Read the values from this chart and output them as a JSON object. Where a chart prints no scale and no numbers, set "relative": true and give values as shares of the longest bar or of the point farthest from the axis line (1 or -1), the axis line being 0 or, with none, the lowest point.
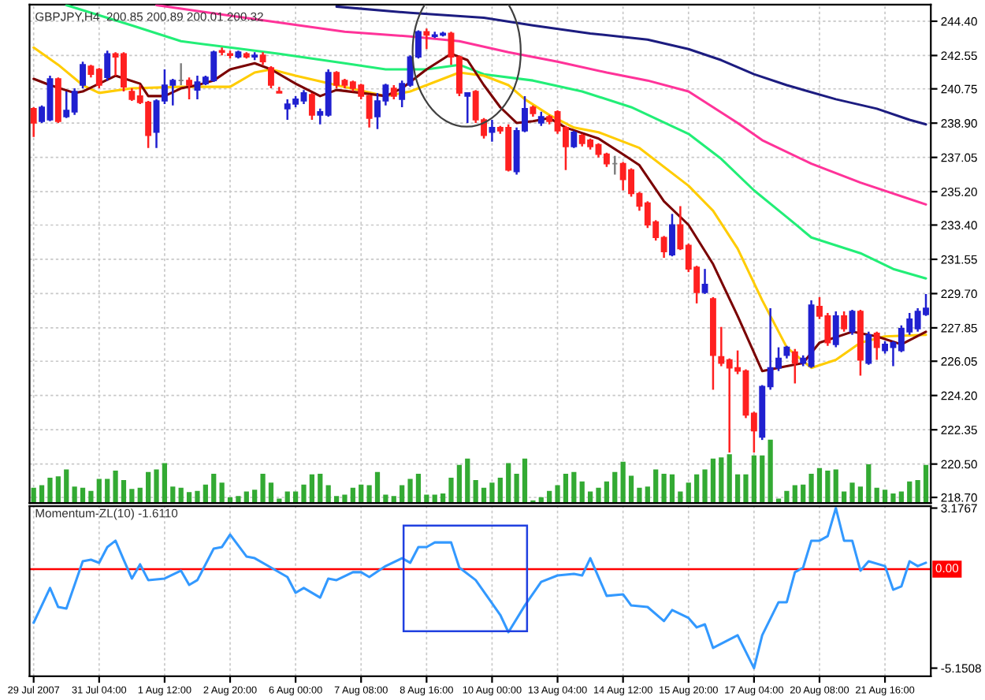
{
  "chart_data": [
    {
      "type": "candlestick",
      "title": "GBPJPY,H4  200.85 200.89 200.01 200.32",
      "categories": [
        null,
        null,
        null,
        null,
        null,
        null,
        null,
        null,
        null,
        null,
        null,
        null,
        null,
        null,
        null,
        null,
        null,
        null,
        null,
        null,
        null,
        null,
        null,
        null,
        null,
        null,
        null,
        null,
        null,
        null,
        null,
        null,
        null,
        null,
        null,
        null,
        null,
        null,
        null,
        null,
        null,
        null,
        null,
        null,
        null,
        null,
        null,
        null,
        null,
        null,
        null,
        null,
        null,
        null,
        null,
        null,
        null,
        null,
        null,
        null,
        null,
        null,
        null,
        null,
        null,
        null,
        null,
        null,
        null,
        null,
        null,
        null,
        null,
        null,
        null,
        null,
        null,
        null,
        null,
        null,
        null,
        null,
        null,
        null,
        null,
        null,
        null,
        null,
        null,
        null,
        null,
        null,
        null,
        null,
        null,
        null,
        null,
        null,
        null,
        null,
        null,
        null,
        null,
        null,
        null,
        null,
        null,
        null,
        null,
        null
      ],
      "ohlc": [
        [
          239.68,
          239.76,
          238.15,
          238.91
        ],
        [
          239.0,
          239.85,
          238.91,
          239.76
        ],
        [
          239.08,
          241.46,
          239.0,
          241.29
        ],
        [
          241.29,
          241.37,
          238.91,
          239.0
        ],
        [
          239.25,
          240.61,
          239.17,
          239.59
        ],
        [
          239.51,
          240.78,
          239.34,
          240.61
        ],
        [
          240.95,
          242.22,
          240.78,
          242.05
        ],
        [
          241.97,
          242.05,
          241.37,
          241.54
        ],
        [
          241.8,
          241.88,
          240.78,
          240.95
        ],
        [
          241.37,
          242.81,
          241.2,
          242.64
        ],
        [
          242.64,
          242.73,
          241.46,
          242.47
        ],
        [
          242.64,
          242.73,
          240.61,
          240.86
        ],
        [
          240.61,
          240.78,
          240.1,
          240.19
        ],
        [
          240.36,
          240.95,
          239.93,
          240.02
        ],
        [
          240.02,
          240.1,
          237.56,
          238.24
        ],
        [
          238.41,
          240.19,
          237.56,
          240.1
        ],
        [
          240.1,
          241.8,
          239.93,
          240.95
        ],
        [
          240.95,
          241.29,
          239.85,
          241.2
        ],
        [
          241.2,
          242.13,
          240.95,
          241.2
        ],
        [
          241.2,
          241.37,
          240.19,
          240.95
        ],
        [
          240.69,
          241.46,
          240.19,
          241.12
        ],
        [
          241.03,
          241.46,
          240.95,
          241.37
        ],
        [
          241.2,
          242.81,
          241.12,
          242.73
        ],
        [
          242.81,
          242.98,
          242.56,
          242.73
        ],
        [
          242.64,
          242.81,
          242.39,
          242.56
        ],
        [
          242.47,
          242.81,
          242.39,
          242.73
        ],
        [
          242.64,
          242.73,
          242.39,
          242.47
        ],
        [
          242.47,
          242.73,
          242.3,
          242.56
        ],
        [
          242.56,
          242.73,
          242.05,
          242.22
        ],
        [
          241.88,
          241.97,
          240.78,
          240.95
        ],
        [
          240.61,
          240.86,
          240.53,
          240.53
        ],
        [
          239.68,
          240.19,
          239.08,
          239.93
        ],
        [
          239.93,
          240.36,
          239.76,
          240.19
        ],
        [
          240.1,
          240.69,
          239.93,
          240.53
        ],
        [
          240.44,
          240.53,
          239.08,
          239.34
        ],
        [
          239.34,
          239.68,
          238.83,
          239.51
        ],
        [
          239.34,
          241.8,
          239.25,
          241.63
        ],
        [
          241.63,
          241.71,
          240.78,
          240.95
        ],
        [
          241.2,
          241.29,
          240.78,
          240.95
        ],
        [
          241.12,
          241.2,
          240.61,
          240.78
        ],
        [
          240.95,
          241.03,
          240.19,
          240.36
        ],
        [
          240.36,
          240.44,
          238.66,
          239.17
        ],
        [
          239.25,
          240.53,
          238.58,
          240.1
        ],
        [
          240.1,
          241.03,
          239.85,
          240.95
        ],
        [
          240.78,
          240.95,
          240.19,
          240.36
        ],
        [
          240.19,
          241.2,
          239.76,
          241.03
        ],
        [
          240.95,
          242.56,
          240.86,
          242.47
        ],
        [
          242.47,
          243.91,
          242.39,
          243.83
        ],
        [
          243.83,
          244.0,
          242.9,
          243.66
        ],
        [
          243.58,
          243.83,
          243.49,
          243.66
        ],
        [
          243.66,
          243.83,
          243.58,
          243.74
        ],
        [
          243.74,
          243.83,
          242.05,
          242.47
        ],
        [
          242.47,
          242.56,
          240.36,
          240.53
        ],
        [
          240.36,
          240.53,
          238.91,
          240.53
        ],
        [
          240.61,
          240.69,
          238.91,
          239.08
        ],
        [
          239.08,
          239.17,
          238.07,
          238.24
        ],
        [
          238.41,
          239.08,
          237.9,
          238.66
        ],
        [
          238.66,
          238.75,
          238.32,
          238.49
        ],
        [
          238.66,
          238.83,
          236.29,
          236.37
        ],
        [
          236.29,
          238.66,
          236.12,
          238.49
        ],
        [
          238.49,
          240.36,
          238.41,
          239.68
        ],
        [
          239.76,
          239.85,
          239.25,
          239.42
        ],
        [
          238.91,
          239.51,
          238.75,
          239.25
        ],
        [
          239.25,
          239.34,
          238.83,
          239.0
        ],
        [
          239.51,
          239.59,
          238.32,
          238.49
        ],
        [
          238.66,
          238.75,
          236.37,
          237.64
        ],
        [
          237.64,
          238.49,
          237.56,
          238.41
        ],
        [
          238.24,
          238.32,
          237.64,
          237.81
        ],
        [
          237.98,
          238.07,
          237.47,
          237.64
        ],
        [
          237.73,
          237.81,
          237.05,
          237.22
        ],
        [
          237.22,
          237.3,
          236.54,
          236.71
        ],
        [
          236.71,
          237.13,
          236.12,
          236.71
        ],
        [
          236.71,
          236.8,
          235.27,
          235.86
        ],
        [
          236.37,
          236.46,
          234.93,
          235.1
        ],
        [
          235.1,
          235.19,
          234.17,
          234.42
        ],
        [
          234.59,
          234.68,
          233.24,
          233.41
        ],
        [
          233.57,
          233.66,
          232.56,
          232.73
        ],
        [
          232.73,
          232.81,
          231.63,
          231.97
        ],
        [
          231.8,
          234.0,
          231.71,
          233.41
        ],
        [
          233.41,
          234.42,
          232.05,
          232.13
        ],
        [
          232.3,
          232.39,
          230.86,
          231.03
        ],
        [
          231.12,
          231.2,
          229.17,
          229.76
        ],
        [
          229.76,
          231.03,
          229.68,
          230.19
        ],
        [
          229.42,
          229.51,
          224.51,
          226.37
        ],
        [
          226.29,
          227.9,
          225.78,
          225.95
        ],
        [
          226.12,
          226.2,
          221.12,
          225.69
        ],
        [
          225.69,
          226.63,
          225.35,
          225.52
        ],
        [
          225.52,
          225.61,
          222.98,
          223.15
        ],
        [
          223.24,
          223.32,
          221.12,
          222.3
        ],
        [
          221.96,
          224.76,
          221.8,
          224.68
        ],
        [
          224.68,
          228.91,
          224.51,
          225.69
        ],
        [
          225.69,
          226.8,
          225.52,
          226.2
        ],
        [
          226.37,
          226.88,
          226.2,
          226.8
        ],
        [
          226.54,
          226.71,
          224.85,
          225.95
        ],
        [
          225.95,
          226.37,
          225.78,
          226.2
        ],
        [
          225.78,
          229.34,
          225.69,
          229.08
        ],
        [
          229.0,
          229.51,
          228.32,
          228.49
        ],
        [
          228.49,
          228.66,
          226.88,
          227.05
        ],
        [
          226.96,
          228.74,
          226.8,
          228.49
        ],
        [
          228.49,
          228.74,
          227.64,
          227.81
        ],
        [
          227.64,
          228.83,
          227.47,
          228.74
        ],
        [
          228.74,
          228.83,
          225.27,
          226.12
        ],
        [
          225.95,
          227.64,
          225.86,
          227.47
        ],
        [
          227.56,
          227.64,
          226.12,
          226.8
        ],
        [
          226.63,
          227.13,
          226.46,
          226.96
        ],
        [
          226.8,
          227.13,
          225.78,
          227.05
        ],
        [
          226.63,
          227.98,
          226.54,
          227.81
        ],
        [
          227.64,
          228.66,
          227.47,
          228.32
        ],
        [
          227.81,
          228.91,
          227.64,
          228.74
        ],
        [
          228.57,
          229.68,
          228.49,
          228.91
        ]
      ],
      "colors": [
        "#ff2020",
        "#2020d0",
        "#2020d0",
        "#ff2020",
        "#2020d0",
        "#2020d0",
        "#2020d0",
        "#ff2020",
        "#ff2020",
        "#2020d0",
        "#ff2020",
        "#ff2020",
        "#ff2020",
        "#ff2020",
        "#ff2020",
        "#2020d0",
        "#2020d0",
        "#2020d0",
        "#808080",
        "#ff2020",
        "#2020d0",
        "#2020d0",
        "#2020d0",
        "#ff2020",
        "#ff2020",
        "#2020d0",
        "#ff2020",
        "#2020d0",
        "#ff2020",
        "#ff2020",
        "#ff2020",
        "#2020d0",
        "#2020d0",
        "#2020d0",
        "#ff2020",
        "#2020d0",
        "#2020d0",
        "#ff2020",
        "#ff2020",
        "#ff2020",
        "#ff2020",
        "#ff2020",
        "#2020d0",
        "#2020d0",
        "#ff2020",
        "#2020d0",
        "#2020d0",
        "#2020d0",
        "#ff2020",
        "#2020d0",
        "#2020d0",
        "#ff2020",
        "#ff2020",
        "#2020d0",
        "#ff2020",
        "#ff2020",
        "#2020d0",
        "#ff2020",
        "#ff2020",
        "#2020d0",
        "#2020d0",
        "#ff2020",
        "#2020d0",
        "#ff2020",
        "#ff2020",
        "#ff2020",
        "#2020d0",
        "#ff2020",
        "#ff2020",
        "#ff2020",
        "#ff2020",
        "#808080",
        "#ff2020",
        "#ff2020",
        "#ff2020",
        "#ff2020",
        "#ff2020",
        "#ff2020",
        "#2020d0",
        "#ff2020",
        "#ff2020",
        "#ff2020",
        "#2020d0",
        "#ff2020",
        "#ff2020",
        "#ff2020",
        "#ff2020",
        "#ff2020",
        "#ff2020",
        "#2020d0",
        "#2020d0",
        "#2020d0",
        "#2020d0",
        "#ff2020",
        "#2020d0",
        "#2020d0",
        "#ff2020",
        "#ff2020",
        "#2020d0",
        "#ff2020",
        "#2020d0",
        "#ff2020",
        "#2020d0",
        "#ff2020",
        "#2020d0",
        "#2020d0",
        "#2020d0",
        "#2020d0",
        "#2020d0",
        "#2020d0"
      ],
      "series": [
        {
          "type": "line",
          "color": "#1c1c80",
          "values": [
            null,
            null,
            null,
            null,
            null,
            null,
            null,
            null,
            null,
            null,
            null,
            null,
            null,
            null,
            null,
            null,
            null,
            null,
            null,
            null,
            null,
            null,
            null,
            null,
            null,
            null,
            null,
            null,
            null,
            null,
            null,
            null,
            null,
            null,
            null,
            null,
            null,
            245.19,
            null,
            null,
            null,
            null,
            null,
            null,
            null,
            null,
            244.85,
            null,
            null,
            null,
            null,
            null,
            null,
            null,
            null,
            244.59,
            null,
            null,
            null,
            null,
            null,
            244.17,
            null,
            null,
            null,
            null,
            null,
            null,
            243.74,
            null,
            null,
            null,
            null,
            null,
            null,
            243.41,
            null,
            null,
            null,
            null,
            242.9,
            null,
            null,
            null,
            242.3,
            null,
            null,
            null,
            241.54,
            null,
            null,
            null,
            240.95,
            null,
            null,
            null,
            null,
            null,
            240.19,
            null,
            null,
            null,
            null,
            239.68,
            null,
            null,
            null,
            239.08,
            null,
            238.83
          ]
        },
        {
          "type": "line",
          "color": "#ff3399",
          "values": [
            null,
            null,
            null,
            null,
            null,
            null,
            null,
            null,
            null,
            null,
            null,
            null,
            null,
            null,
            null,
            245.27,
            null,
            null,
            null,
            null,
            null,
            null,
            null,
            null,
            null,
            null,
            null,
            244.51,
            null,
            null,
            null,
            null,
            null,
            null,
            null,
            null,
            null,
            null,
            243.83,
            null,
            null,
            null,
            null,
            null,
            null,
            null,
            243.58,
            null,
            null,
            null,
            null,
            null,
            243.32,
            null,
            null,
            null,
            null,
            null,
            242.73,
            null,
            null,
            null,
            null,
            null,
            242.22,
            null,
            null,
            null,
            null,
            null,
            241.63,
            null,
            null,
            null,
            null,
            241.2,
            null,
            null,
            null,
            null,
            240.61,
            null,
            null,
            null,
            null,
            null,
            238.91,
            null,
            null,
            237.98,
            null,
            null,
            null,
            null,
            null,
            236.71,
            null,
            null,
            null,
            null,
            null,
            235.69,
            null,
            null,
            null,
            null,
            null,
            null,
            null,
            234.51
          ]
        },
        {
          "type": "line",
          "color": "#22ee77",
          "values": [
            null,
            null,
            null,
            null,
            245.27,
            null,
            null,
            null,
            null,
            null,
            null,
            null,
            244.17,
            null,
            null,
            null,
            null,
            null,
            243.32,
            null,
            null,
            null,
            null,
            null,
            242.98,
            null,
            null,
            null,
            null,
            null,
            242.64,
            null,
            null,
            null,
            null,
            null,
            null,
            null,
            242.13,
            null,
            null,
            null,
            null,
            241.8,
            null,
            null,
            null,
            null,
            241.8,
            null,
            null,
            null,
            242.05,
            null,
            null,
            241.54,
            null,
            null,
            null,
            null,
            null,
            241.2,
            null,
            null,
            null,
            null,
            null,
            240.61,
            null,
            null,
            null,
            null,
            null,
            239.76,
            null,
            null,
            null,
            null,
            null,
            null,
            238.32,
            null,
            null,
            null,
            236.97,
            null,
            null,
            null,
            235.27,
            null,
            null,
            null,
            233.83,
            null,
            null,
            232.73,
            null,
            null,
            null,
            null,
            null,
            231.88,
            null,
            null,
            null,
            231.03,
            null,
            null,
            null,
            230.52
          ]
        },
        {
          "type": "line",
          "color": "#ffcc00",
          "values": [
            242.98,
            null,
            null,
            242.05,
            null,
            null,
            240.95,
            null,
            240.53,
            null,
            null,
            null,
            240.78,
            null,
            null,
            null,
            null,
            null,
            240.86,
            null,
            null,
            null,
            null,
            null,
            240.86,
            null,
            null,
            241.63,
            null,
            241.8,
            null,
            null,
            241.46,
            null,
            null,
            null,
            null,
            240.95,
            null,
            null,
            null,
            null,
            null,
            240.36,
            null,
            null,
            240.61,
            null,
            null,
            null,
            null,
            null,
            241.63,
            null,
            null,
            241.46,
            null,
            null,
            240.95,
            null,
            240.19,
            null,
            null,
            239.34,
            null,
            null,
            238.66,
            null,
            null,
            238.41,
            null,
            null,
            null,
            null,
            237.56,
            null,
            null,
            null,
            null,
            null,
            235.52,
            null,
            null,
            234.17,
            null,
            null,
            232.13,
            null,
            null,
            229.34,
            null,
            null,
            226.8,
            null,
            null,
            225.69,
            null,
            null,
            226.12,
            null,
            null,
            227.05,
            null,
            null,
            227.39,
            null,
            null,
            null,
            null,
            227.47
          ]
        },
        {
          "type": "line",
          "color": "#7a0000",
          "values": [
            241.29,
            null,
            240.95,
            null,
            null,
            240.53,
            240.61,
            null,
            241.03,
            null,
            241.46,
            null,
            null,
            241.03,
            240.36,
            null,
            240.36,
            null,
            240.78,
            null,
            240.95,
            null,
            241.2,
            null,
            241.8,
            null,
            null,
            242.13,
            null,
            241.8,
            null,
            null,
            241.03,
            null,
            null,
            240.36,
            null,
            240.69,
            null,
            null,
            240.53,
            null,
            null,
            240.36,
            null,
            240.78,
            null,
            null,
            241.8,
            null,
            null,
            242.64,
            null,
            242.3,
            null,
            240.95,
            null,
            239.76,
            null,
            238.91,
            null,
            239.0,
            null,
            239.17,
            null,
            238.66,
            null,
            null,
            null,
            238.07,
            null,
            null,
            237.22,
            null,
            236.63,
            null,
            null,
            234.68,
            null,
            null,
            233.41,
            null,
            null,
            231.29,
            null,
            null,
            228.49,
            null,
            null,
            225.52,
            null,
            null,
            225.78,
            null,
            225.95,
            null,
            227.05,
            null,
            null,
            null,
            227.64,
            null,
            null,
            227.39,
            null,
            null,
            226.96,
            null,
            null,
            227.64
          ]
        }
      ],
      "ylim": [
        218.4,
        245.3
      ],
      "yticks": [
        {
          "value": 244.4,
          "label": "244.40"
        },
        {
          "value": 242.55,
          "label": "242.55"
        },
        {
          "value": 240.75,
          "label": "240.75"
        },
        {
          "value": 238.9,
          "label": "238.90"
        },
        {
          "value": 237.05,
          "label": "237.05"
        },
        {
          "value": 235.2,
          "label": "235.20"
        },
        {
          "value": 233.4,
          "label": "233.40"
        },
        {
          "value": 231.55,
          "label": "231.55"
        },
        {
          "value": 229.7,
          "label": "229.70"
        },
        {
          "value": 227.85,
          "label": "227.85"
        },
        {
          "value": 226.05,
          "label": "226.05"
        },
        {
          "value": 224.2,
          "label": "224.20"
        },
        {
          "value": 222.35,
          "label": "222.35"
        },
        {
          "value": 220.5,
          "label": "220.50"
        },
        {
          "value": 218.7,
          "label": "218.70"
        }
      ],
      "grid": true,
      "tick_labels": "y"
    },
    {
      "type": "bar",
      "relative": true,
      "color": "#33aa33",
      "tick_labels": false,
      "categories": [
        null,
        null,
        null,
        null,
        null,
        null,
        null,
        null,
        null,
        null,
        null,
        null,
        null,
        null,
        null,
        null,
        null,
        null,
        null,
        null,
        null,
        null,
        null,
        null,
        null,
        null,
        null,
        null,
        null,
        null,
        null,
        null,
        null,
        null,
        null,
        null,
        null,
        null,
        null,
        null,
        null,
        null,
        null,
        null,
        null,
        null,
        null,
        null,
        null,
        null,
        null,
        null,
        null,
        null,
        null,
        null,
        null,
        null,
        null,
        null,
        null,
        null,
        null,
        null,
        null,
        null,
        null,
        null,
        null,
        null,
        null,
        null,
        null,
        null,
        null,
        null,
        null,
        null,
        null,
        null,
        null,
        null,
        null,
        null,
        null,
        null,
        null,
        null,
        null,
        null,
        null,
        null,
        null,
        null,
        null,
        null,
        null,
        null,
        null,
        null,
        null,
        null,
        null,
        null,
        null,
        null,
        null,
        null,
        null,
        null
      ],
      "values": [
        0.24,
        0.28,
        0.4,
        0.42,
        0.53,
        0.26,
        0.24,
        0.19,
        0.38,
        0.38,
        0.51,
        0.36,
        0.22,
        0.24,
        0.49,
        0.53,
        0.63,
        0.26,
        0.24,
        0.17,
        0.19,
        0.29,
        0.46,
        0.32,
        0.09,
        0.11,
        0.18,
        0.21,
        0.46,
        0.32,
        0.07,
        0.18,
        0.18,
        0.29,
        0.45,
        0.46,
        0.28,
        0.11,
        0.13,
        0.24,
        0.29,
        0.28,
        0.49,
        0.13,
        0.11,
        0.28,
        0.38,
        0.46,
        0.13,
        0.13,
        0.15,
        0.4,
        0.6,
        0.7,
        0.36,
        0.24,
        0.32,
        0.4,
        0.63,
        0.46,
        0.7,
        0.04,
        0.09,
        0.19,
        0.28,
        0.46,
        0.49,
        0.34,
        0.18,
        0.24,
        0.34,
        0.49,
        0.65,
        0.43,
        0.24,
        0.26,
        0.53,
        0.46,
        0.45,
        0.18,
        0.32,
        0.45,
        0.53,
        0.7,
        0.72,
        0.77,
        0.45,
        0.45,
        0.75,
        0.75,
        1.0,
        0.07,
        0.19,
        0.28,
        0.29,
        0.46,
        0.55,
        0.51,
        0.53,
        0.18,
        0.32,
        0.26,
        0.61,
        0.24,
        0.21,
        0.15,
        0.18,
        0.34,
        0.36,
        0.6
      ]
    },
    {
      "type": "line",
      "title": "Momentum-ZL(10) -1.6110",
      "categories": [
        "29 Jul 2007",
        null,
        null,
        null,
        null,
        null,
        null,
        null,
        "31 Jul 04:00",
        null,
        null,
        null,
        null,
        null,
        null,
        null,
        "1 Aug 12:00",
        null,
        null,
        null,
        null,
        null,
        null,
        null,
        "2 Aug 20:00",
        null,
        null,
        null,
        null,
        null,
        null,
        null,
        "6 Aug 00:00",
        null,
        null,
        null,
        null,
        null,
        null,
        null,
        "7 Aug 08:00",
        null,
        null,
        null,
        null,
        null,
        null,
        null,
        "8 Aug 16:00",
        null,
        null,
        null,
        null,
        null,
        null,
        null,
        "10 Aug 00:00",
        null,
        null,
        null,
        null,
        null,
        null,
        null,
        "13 Aug 04:00",
        null,
        null,
        null,
        null,
        null,
        null,
        null,
        "14 Aug 12:00",
        null,
        null,
        null,
        null,
        null,
        null,
        null,
        "15 Aug 20:00",
        null,
        null,
        null,
        null,
        null,
        null,
        null,
        "17 Aug 04:00",
        null,
        null,
        null,
        null,
        null,
        null,
        null,
        "20 Aug 08:00",
        null,
        null,
        null,
        null,
        null,
        null,
        null,
        "21 Aug 16:00",
        null,
        null,
        null,
        null,
        null
      ],
      "series": [
        {
          "color": "#3399ff",
          "values": [
            -2.79,
            null,
            -0.98,
            -1.97,
            -2.05,
            null,
            0.41,
            0.49,
            0.33,
            1.15,
            1.48,
            0.49,
            -0.49,
            0.25,
            -0.57,
            null,
            -0.49,
            null,
            -0.08,
            -0.82,
            -0.57,
            null,
            1.07,
            1.15,
            1.8,
            null,
            0.66,
            0.57,
            null,
            0.08,
            null,
            -0.41,
            -1.23,
            -0.98,
            null,
            -1.48,
            -0.49,
            -0.57,
            null,
            -0.16,
            -0.16,
            -0.41,
            null,
            0.16,
            null,
            0.57,
            0.33,
            1.15,
            1.15,
            1.39,
            null,
            1.39,
            0.08,
            null,
            -0.57,
            null,
            null,
            -2.38,
            -3.28,
            null,
            -1.89,
            null,
            -0.66,
            null,
            -0.33,
            null,
            -0.25,
            -0.33,
            0.57,
            null,
            -1.39,
            null,
            -1.31,
            -1.89,
            null,
            -1.97,
            null,
            -2.7,
            -2.13,
            null,
            -2.54,
            -3.03,
            -2.87,
            -4.1,
            null,
            null,
            -3.44,
            null,
            -5.1508,
            -3.44,
            null,
            -1.72,
            -1.72,
            -0.16,
            0.08,
            1.48,
            1.48,
            1.72,
            3.1767,
            1.48,
            1.48,
            -0.08,
            0.41,
            null,
            0.16,
            -1.07,
            -0.9,
            0.41,
            0.16,
            0.33
          ]
        }
      ],
      "ylim": [
        -5.57,
        3.28
      ],
      "yticks": [
        3.1767,
        -5.1508
      ],
      "ref_lines": [
        {
          "axis": "y",
          "value": 0,
          "label": "0.00",
          "color": "#ff0000"
        }
      ],
      "grid": "x"
    }
  ]
}
